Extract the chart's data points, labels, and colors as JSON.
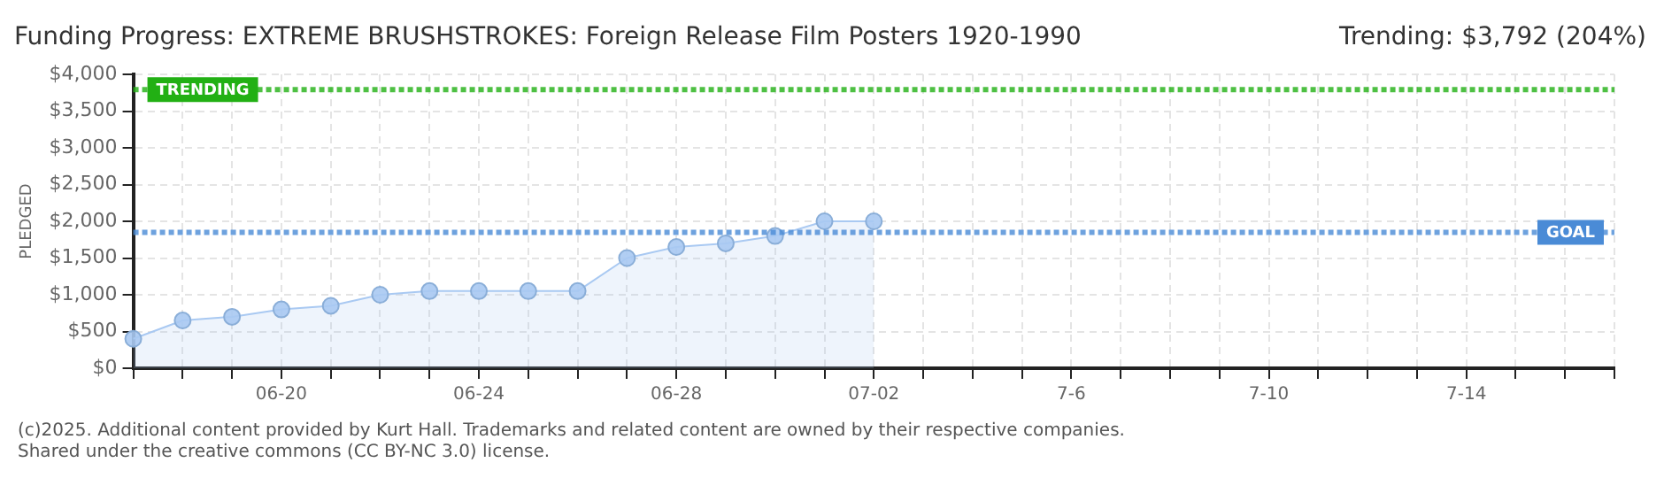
{
  "chart_data": {
    "type": "area",
    "title": "Funding Progress: EXTREME BRUSHSTROKES: Foreign Release Film Posters 1920-1990",
    "subtitle": "Trending: $3,792 (204%)",
    "ylabel": "PLEDGED",
    "annotations": [
      "(c)2025. Additional content provided by Kurt Hall. Trademarks and related content are owned by their respective companies.",
      "Shared under the creative commons (CC BY-NC 3.0) license."
    ],
    "categories": [
      null,
      null,
      null,
      "06-20",
      null,
      null,
      null,
      "06-24",
      null,
      null,
      null,
      "06-28",
      null,
      null,
      null,
      "07-02",
      null,
      null,
      null,
      "7-6",
      null,
      null,
      null,
      "7-10",
      null,
      null,
      null,
      "7-14",
      null,
      null,
      null
    ],
    "series": [
      {
        "color": "#a9c9f2",
        "values": [
          400,
          650,
          700,
          800,
          850,
          1000,
          1050,
          1050,
          1050,
          1050,
          1500,
          1650,
          1700,
          1800,
          2000,
          2000,
          null,
          null,
          null,
          null,
          null,
          null,
          null,
          null,
          null,
          null,
          null,
          null,
          null,
          null,
          null
        ]
      }
    ],
    "ylim": [
      0,
      4000
    ],
    "yticks": [
      {
        "value": 0,
        "label": "$0"
      },
      {
        "value": 500,
        "label": "$500"
      },
      {
        "value": 1000,
        "label": "$1,000"
      },
      {
        "value": 1500,
        "label": "$1,500"
      },
      {
        "value": 2000,
        "label": "$2,000"
      },
      {
        "value": 2500,
        "label": "$2,500"
      },
      {
        "value": 3000,
        "label": "$3,000"
      },
      {
        "value": 3500,
        "label": "$3,500"
      },
      {
        "value": 4000,
        "label": "$4,000"
      }
    ],
    "ref_lines": [
      {
        "axis": "y",
        "value": 1850,
        "label": "GOAL",
        "color": "#4a8bd6",
        "line_style": "dotted"
      },
      {
        "axis": "y",
        "value": 3792,
        "label": "TRENDING",
        "color": "#22b014",
        "line_style": "dotted"
      }
    ],
    "grid": true,
    "legend": false,
    "marker": "circle",
    "line_style": "solid"
  }
}
